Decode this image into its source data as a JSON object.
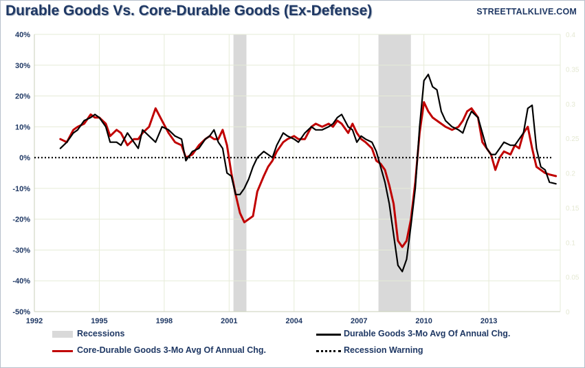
{
  "header": {
    "title": "Durable Goods Vs. Core-Durable Goods (Ex-Defense)",
    "brand": "STREETTALKLIVE.COM"
  },
  "chart_data": {
    "type": "line",
    "title": "Durable Goods Vs. Core-Durable Goods (Ex-Defense)",
    "xlim": [
      1992,
      2016.3
    ],
    "ylim": [
      -50,
      40
    ],
    "x_ticks": [
      "1992",
      "1995",
      "1998",
      "2001",
      "2004",
      "2007",
      "2010",
      "2013"
    ],
    "y_ticks": [
      "40%",
      "30%",
      "20%",
      "10%",
      "0%",
      "-10%",
      "-20%",
      "-30%",
      "-40%",
      "-50%"
    ],
    "right_ticks": [
      "0.4",
      "0.35",
      "0.3",
      "0.25",
      "0.2",
      "0.15",
      "0.1",
      "0.05",
      "0"
    ],
    "grid": true,
    "recessions": [
      [
        2001.2,
        2001.8
      ],
      [
        2007.9,
        2009.4
      ]
    ],
    "recession_warning_level": 0,
    "colors": {
      "durable": "#000000",
      "core": "#c00000",
      "recession": "#d9d9d9",
      "warning": "#000000",
      "grid": "#e6ebd7",
      "axis_text": "#1f3864"
    },
    "series": [
      {
        "name": "Durable Goods 3-Mo Avg Of Annual Chg.",
        "x": [
          1993.2,
          1993.5,
          1993.8,
          1994.0,
          1994.3,
          1994.6,
          1994.8,
          1995.0,
          1995.3,
          1995.5,
          1995.8,
          1996.0,
          1996.3,
          1996.6,
          1996.8,
          1997.0,
          1997.3,
          1997.6,
          1997.9,
          1998.2,
          1998.5,
          1998.8,
          1999.0,
          1999.3,
          1999.6,
          1999.9,
          2000.1,
          2000.3,
          2000.5,
          2000.7,
          2000.9,
          2001.1,
          2001.3,
          2001.5,
          2001.7,
          2001.9,
          2002.1,
          2002.3,
          2002.6,
          2002.8,
          2003.0,
          2003.2,
          2003.5,
          2003.7,
          2004.0,
          2004.2,
          2004.5,
          2004.8,
          2005.0,
          2005.3,
          2005.6,
          2005.8,
          2006.0,
          2006.2,
          2006.5,
          2006.7,
          2006.9,
          2007.1,
          2007.3,
          2007.6,
          2007.8,
          2008.0,
          2008.2,
          2008.4,
          2008.6,
          2008.8,
          2009.0,
          2009.2,
          2009.4,
          2009.6,
          2009.8,
          2010.0,
          2010.2,
          2010.4,
          2010.6,
          2010.8,
          2011.0,
          2011.3,
          2011.6,
          2011.8,
          2012.0,
          2012.2,
          2012.5,
          2012.7,
          2012.9,
          2013.1,
          2013.3,
          2013.5,
          2013.7,
          2014.0,
          2014.2,
          2014.4,
          2014.6,
          2014.8,
          2015.0,
          2015.2,
          2015.4,
          2015.6,
          2015.8,
          2016.1
        ],
        "values": [
          3,
          5,
          8,
          9,
          12,
          13,
          14,
          13,
          10,
          5,
          5,
          4,
          8,
          5,
          3,
          9,
          7,
          5,
          10,
          9,
          7,
          6,
          -1,
          2,
          3,
          6,
          7,
          9,
          5,
          3,
          -5,
          -6,
          -12,
          -12,
          -10,
          -7,
          -3,
          0,
          2,
          1,
          0,
          4,
          8,
          7,
          6,
          5,
          8,
          10,
          9,
          9,
          10,
          11,
          13,
          14,
          10,
          9,
          5,
          7,
          6,
          5,
          2,
          -3,
          -8,
          -15,
          -25,
          -35,
          -37,
          -33,
          -22,
          -10,
          10,
          25,
          27,
          23,
          22,
          15,
          12,
          10,
          9,
          8,
          12,
          15,
          13,
          8,
          3,
          1,
          1,
          3,
          5,
          4,
          4,
          6,
          8,
          16,
          17,
          3,
          -3,
          -4,
          -8,
          -8.5
        ]
      },
      {
        "name": "Core-Durable Goods 3-Mo Avg Of Annual Chg.",
        "x": [
          1993.2,
          1993.5,
          1993.8,
          1994.0,
          1994.3,
          1994.6,
          1994.8,
          1995.0,
          1995.3,
          1995.5,
          1995.8,
          1996.0,
          1996.3,
          1996.6,
          1996.8,
          1997.0,
          1997.3,
          1997.6,
          1997.9,
          1998.2,
          1998.5,
          1998.8,
          1999.0,
          1999.3,
          1999.6,
          1999.9,
          2000.1,
          2000.3,
          2000.5,
          2000.7,
          2000.9,
          2001.1,
          2001.3,
          2001.5,
          2001.7,
          2001.9,
          2002.1,
          2002.3,
          2002.6,
          2002.8,
          2003.0,
          2003.2,
          2003.5,
          2003.7,
          2004.0,
          2004.2,
          2004.5,
          2004.8,
          2005.0,
          2005.3,
          2005.6,
          2005.8,
          2006.0,
          2006.2,
          2006.5,
          2006.7,
          2006.9,
          2007.1,
          2007.3,
          2007.6,
          2007.8,
          2008.0,
          2008.2,
          2008.4,
          2008.6,
          2008.8,
          2009.0,
          2009.2,
          2009.4,
          2009.6,
          2009.8,
          2010.0,
          2010.2,
          2010.4,
          2010.6,
          2010.8,
          2011.0,
          2011.3,
          2011.6,
          2011.8,
          2012.0,
          2012.2,
          2012.5,
          2012.7,
          2012.9,
          2013.1,
          2013.3,
          2013.5,
          2013.7,
          2014.0,
          2014.2,
          2014.4,
          2014.6,
          2014.8,
          2015.0,
          2015.2,
          2015.4,
          2015.6,
          2015.8,
          2016.1
        ],
        "values": [
          6,
          5,
          9,
          10,
          11,
          14,
          13,
          13,
          11,
          7,
          9,
          8,
          4,
          6,
          6,
          8,
          10,
          16,
          12,
          8,
          5,
          4,
          0,
          1,
          4,
          6,
          7,
          6,
          6,
          9,
          4,
          -5,
          -12,
          -18,
          -21,
          -20,
          -19,
          -11,
          -6,
          -3,
          -1,
          2,
          5,
          6,
          7,
          6,
          6,
          10,
          11,
          10,
          11,
          10,
          12,
          11,
          8,
          11,
          8,
          6,
          5,
          3,
          -1,
          -2,
          -4,
          -9,
          -15,
          -27,
          -29,
          -27,
          -20,
          -8,
          8,
          18,
          15,
          13,
          12,
          11,
          10,
          9,
          10,
          12,
          15,
          16,
          13,
          5,
          3,
          1,
          -4,
          0,
          2,
          1,
          4,
          3,
          8,
          10,
          3,
          -3,
          -4,
          -5,
          -5.5,
          -6
        ]
      }
    ]
  },
  "legend": {
    "recessions": "Recessions",
    "durable": "Durable Goods 3-Mo Avg Of Annual Chg.",
    "core": "Core-Durable Goods 3-Mo Avg Of Annual Chg.",
    "warning": "Recession Warning"
  }
}
